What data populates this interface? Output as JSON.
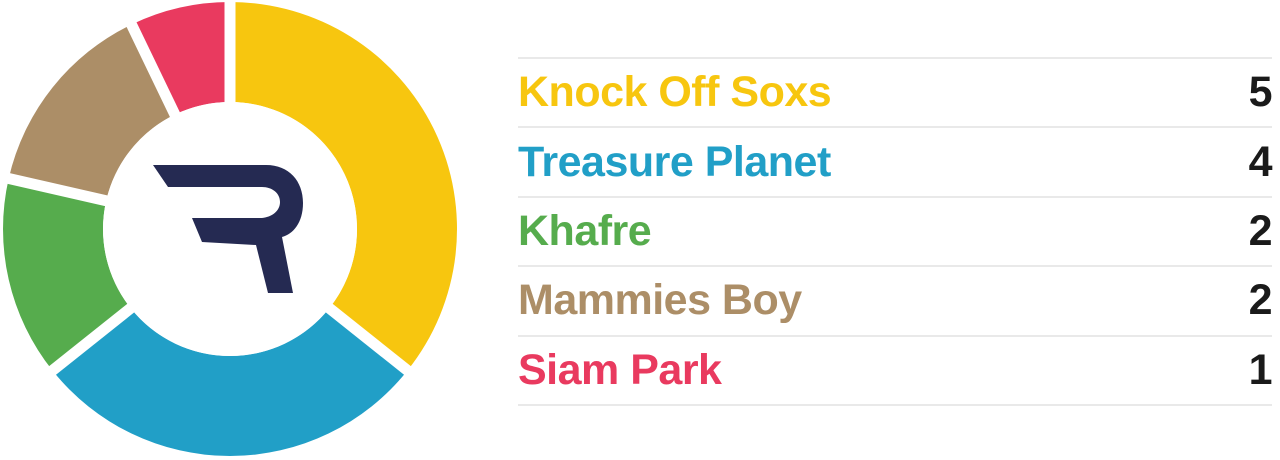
{
  "chart_data": {
    "type": "pie",
    "variant": "donut",
    "title": "",
    "categories": [
      "Knock Off Soxs",
      "Treasure Planet",
      "Khafre",
      "Mammies Boy",
      "Siam Park"
    ],
    "values": [
      5,
      4,
      2,
      2,
      1
    ],
    "total": 14,
    "colors": [
      "#F7C60F",
      "#219FC7",
      "#56AC4D",
      "#AC8E67",
      "#E93A5F"
    ],
    "start_angle_deg": 0,
    "direction": "clockwise",
    "segment_gap_color": "#FFFFFF",
    "center_logo": "R",
    "legend_position": "right"
  },
  "legend": {
    "rows": [
      {
        "label": "Knock Off Soxs",
        "value": "5",
        "color": "#F7C60F"
      },
      {
        "label": "Treasure Planet",
        "value": "4",
        "color": "#219FC7"
      },
      {
        "label": "Khafre",
        "value": "2",
        "color": "#56AC4D"
      },
      {
        "label": "Mammies Boy",
        "value": "2",
        "color": "#AC8E67"
      },
      {
        "label": "Siam Park",
        "value": "1",
        "color": "#E93A5F"
      }
    ],
    "value_color": "#1A1A1A",
    "divider_color": "#E9E9E9"
  },
  "logo": {
    "glyph": "R",
    "color": "#252A52"
  }
}
